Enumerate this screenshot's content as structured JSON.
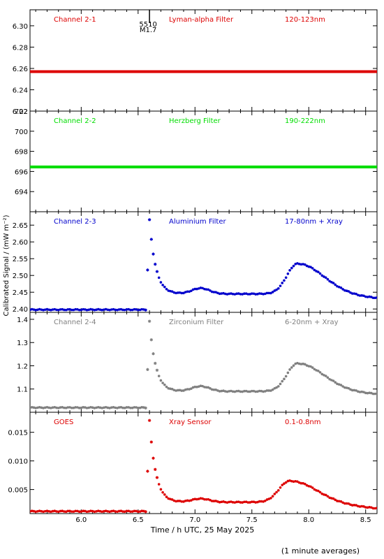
{
  "chart_data": [
    {
      "type": "scatter",
      "channel": "Channel 2-1",
      "filter": "Lyman-alpha Filter",
      "band": "120-123nm",
      "color": "#dd0000",
      "ylim": [
        6.22,
        6.315
      ],
      "yticks": [
        "6.22",
        "6.24",
        "6.26",
        "6.28",
        "6.30"
      ],
      "annotation": {
        "text_top": "5510",
        "text_bottom": "M1.7",
        "x": 6.6
      },
      "profile": {
        "pre": 6.257,
        "post": 6.257,
        "peak": 6.257,
        "peak_x": 6.6,
        "bump": 0,
        "bump_x": 7.05,
        "hump": 0,
        "hump_x": 7.9,
        "end": 6.257
      }
    },
    {
      "type": "scatter",
      "channel": "Channel 2-2",
      "filter": "Herzberg Filter",
      "band": "190-222nm",
      "color": "#00dd00",
      "ylim": [
        692,
        702
      ],
      "yticks": [
        "694",
        "696",
        "698",
        "700",
        "702"
      ],
      "profile": {
        "pre": 696.45,
        "post": 696.45,
        "peak": 696.45,
        "peak_x": 6.6,
        "bump": 0,
        "bump_x": 7.05,
        "hump": 0,
        "hump_x": 7.9,
        "end": 696.45
      }
    },
    {
      "type": "scatter",
      "channel": "Channel 2-3",
      "filter": "Aluminium Filter",
      "band": "17-80nm + Xray",
      "color": "#0000cc",
      "ylim": [
        2.39,
        2.69
      ],
      "yticks": [
        "2.40",
        "2.45",
        "2.50",
        "2.55",
        "2.60",
        "2.65"
      ],
      "profile": {
        "pre": 2.398,
        "post": 2.445,
        "peak": 2.665,
        "peak_x": 6.6,
        "bump": 0.017,
        "bump_x": 7.05,
        "hump": 0.09,
        "hump_x": 7.9,
        "end": 2.432
      }
    },
    {
      "type": "scatter",
      "channel": "Channel 2-4",
      "filter": "Zirconium Filter",
      "band": "6-20nm + Xray",
      "color": "#808080",
      "ylim": [
        1.0,
        1.43
      ],
      "yticks": [
        "1.1",
        "1.2",
        "1.3",
        "1.4"
      ],
      "profile": {
        "pre": 1.02,
        "post": 1.09,
        "peak": 1.39,
        "peak_x": 6.6,
        "bump": 0.022,
        "bump_x": 7.05,
        "hump": 0.12,
        "hump_x": 7.9,
        "end": 1.078
      }
    },
    {
      "type": "scatter",
      "channel": "GOES",
      "filter": "Xray Sensor",
      "band": "0.1-0.8nm",
      "color": "#dd0000",
      "ylim": [
        0.0008,
        0.0185
      ],
      "yticks": [
        "0.005",
        "0.010",
        "0.015"
      ],
      "profile": {
        "pre": 0.0012,
        "post": 0.0028,
        "peak": 0.017,
        "peak_x": 6.6,
        "bump": 0.0006,
        "bump_x": 7.05,
        "hump": 0.0037,
        "hump_x": 7.83,
        "end": 0.0017
      }
    }
  ],
  "xaxis": {
    "xlim": [
      5.55,
      8.6
    ],
    "ticks": [
      "6.0",
      "6.5",
      "7.0",
      "7.5",
      "8.0",
      "8.5"
    ],
    "xlabel": "Time / h UTC, 25 May 2025"
  },
  "ylabel": "Calibrated Signal / (mW m⁻²)",
  "footnote": "(1 minute averages)"
}
